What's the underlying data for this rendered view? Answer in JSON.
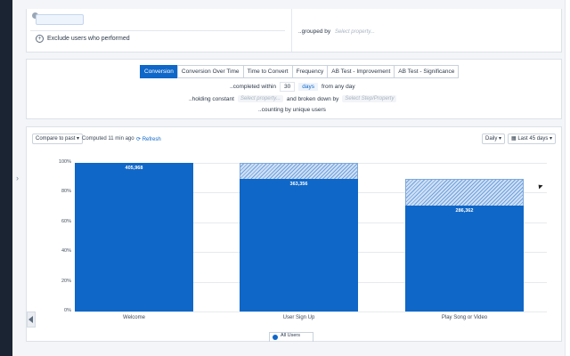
{
  "top": {
    "exclude_label": "Exclude users who performed",
    "grouped_label": "..grouped by",
    "grouped_placeholder": "Select property..."
  },
  "config": {
    "tabs": [
      {
        "label": "Conversion",
        "active": true
      },
      {
        "label": "Conversion Over Time",
        "active": false
      },
      {
        "label": "Time to Convert",
        "active": false
      },
      {
        "label": "Frequency",
        "active": false
      },
      {
        "label": "AB Test - Improvement",
        "active": false
      },
      {
        "label": "AB Test - Significance",
        "active": false
      }
    ],
    "completed_within": "..completed within",
    "completed_value": "30",
    "completed_unit": "days",
    "completed_suffix": "from any day",
    "holding_label": "..holding constant",
    "holding_placeholder": "Select property...",
    "broken_label": "and broken down by",
    "broken_placeholder": "Select Step/Property",
    "counting_label": "..counting by unique users"
  },
  "controls": {
    "compare_label": "Compare to past",
    "computed_label": "Computed 11 min ago",
    "refresh_label": "Refresh",
    "interval_label": "Daily",
    "range_label": "Last 45 days"
  },
  "chart_data": {
    "type": "bar",
    "categories": [
      "Welcome",
      "User Sign Up",
      "Play Song or Video"
    ],
    "values": [
      100,
      89,
      71
    ],
    "labels": [
      "405,968",
      "363,356",
      "286,362"
    ],
    "dropoff_top": [
      100,
      100,
      89
    ],
    "yticks": [
      "0%",
      "20%",
      "40%",
      "60%",
      "80%",
      "100%"
    ],
    "ylim": [
      0,
      100
    ],
    "legend": "All Users"
  },
  "colors": {
    "bar": "#0f67c8",
    "hatch": "#6fa1de",
    "accent": "#0f67c8"
  }
}
